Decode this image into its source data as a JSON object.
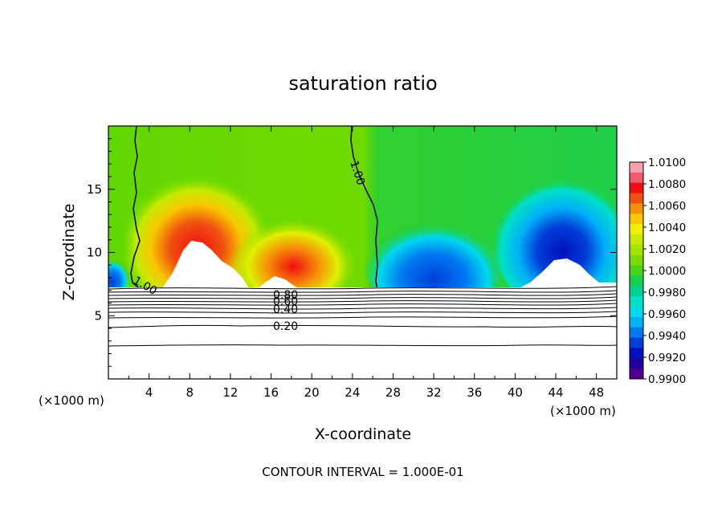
{
  "chart_data": {
    "type": "heatmap",
    "title": "saturation ratio",
    "xlabel": "X-coordinate",
    "ylabel": "Z-coordinate",
    "x_unit_left": "(×1000 m)",
    "x_unit_right": "(×1000 m)",
    "footer": "CONTOUR INTERVAL = 1.000E-01",
    "xlim": [
      0,
      50
    ],
    "ylim": [
      0,
      20
    ],
    "x_ticks": [
      4,
      8,
      12,
      16,
      20,
      24,
      28,
      32,
      36,
      40,
      44,
      48
    ],
    "y_ticks": [
      5,
      10,
      15
    ],
    "colorbar": {
      "min": 0.99,
      "max": 1.01,
      "tick_labels": [
        "1.0100",
        "1.0080",
        "1.0060",
        "1.0040",
        "1.0020",
        "1.0000",
        "0.9980",
        "0.9960",
        "0.9940",
        "0.9920",
        "0.9900"
      ],
      "colors": [
        "#f8a0b0",
        "#f05a6a",
        "#ee1010",
        "#f05010",
        "#f69008",
        "#f8c800",
        "#f0f000",
        "#c6ea00",
        "#a2e400",
        "#7cdc00",
        "#46d416",
        "#14d04c",
        "#00d090",
        "#00e0c8",
        "#00d8f0",
        "#00b0f8",
        "#0078f0",
        "#0040d8",
        "#0010c0",
        "#2000a0",
        "#500090"
      ]
    },
    "contour_labels": [
      {
        "text": "1.00",
        "x": 3.5,
        "z": 7.9
      },
      {
        "text": "1.00",
        "x": 24.6,
        "z": 16.0
      },
      {
        "text": "0.80",
        "x": 17.4,
        "z": 6.9
      },
      {
        "text": "0.60",
        "x": 17.4,
        "z": 6.3
      },
      {
        "text": "0.40",
        "x": 17.4,
        "z": 5.7
      },
      {
        "text": "0.20",
        "x": 17.4,
        "z": 4.2
      }
    ]
  }
}
